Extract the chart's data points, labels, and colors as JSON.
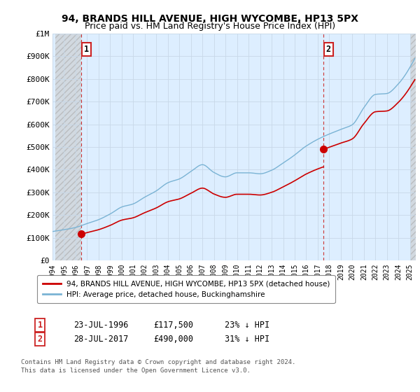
{
  "title": "94, BRANDS HILL AVENUE, HIGH WYCOMBE, HP13 5PX",
  "subtitle": "Price paid vs. HM Land Registry's House Price Index (HPI)",
  "sale1_price": 117500,
  "sale2_price": 490000,
  "hpi_color": "#7ab3d4",
  "price_color": "#cc0000",
  "marker_color": "#cc0000",
  "chart_bg": "#ddeeff",
  "ylim": [
    0,
    1000000
  ],
  "yticks": [
    0,
    100000,
    200000,
    300000,
    400000,
    500000,
    600000,
    700000,
    800000,
    900000,
    1000000
  ],
  "ytick_labels": [
    "£0",
    "£100K",
    "£200K",
    "£300K",
    "£400K",
    "£500K",
    "£600K",
    "£700K",
    "£800K",
    "£900K",
    "£1M"
  ],
  "xlim_start": 1994.25,
  "xlim_end": 2025.5,
  "xticks": [
    1994,
    1995,
    1996,
    1997,
    1998,
    1999,
    2000,
    2001,
    2002,
    2003,
    2004,
    2005,
    2006,
    2007,
    2008,
    2009,
    2010,
    2011,
    2012,
    2013,
    2014,
    2015,
    2016,
    2017,
    2018,
    2019,
    2020,
    2021,
    2022,
    2023,
    2024,
    2025
  ],
  "legend_label_red": "94, BRANDS HILL AVENUE, HIGH WYCOMBE, HP13 5PX (detached house)",
  "legend_label_blue": "HPI: Average price, detached house, Buckinghamshire",
  "footer_line1": "Contains HM Land Registry data © Crown copyright and database right 2024.",
  "footer_line2": "This data is licensed under the Open Government Licence v3.0.",
  "table_row1": [
    "1",
    "23-JUL-1996",
    "£117,500",
    "23% ↓ HPI"
  ],
  "table_row2": [
    "2",
    "28-JUL-2017",
    "£490,000",
    "31% ↓ HPI"
  ]
}
